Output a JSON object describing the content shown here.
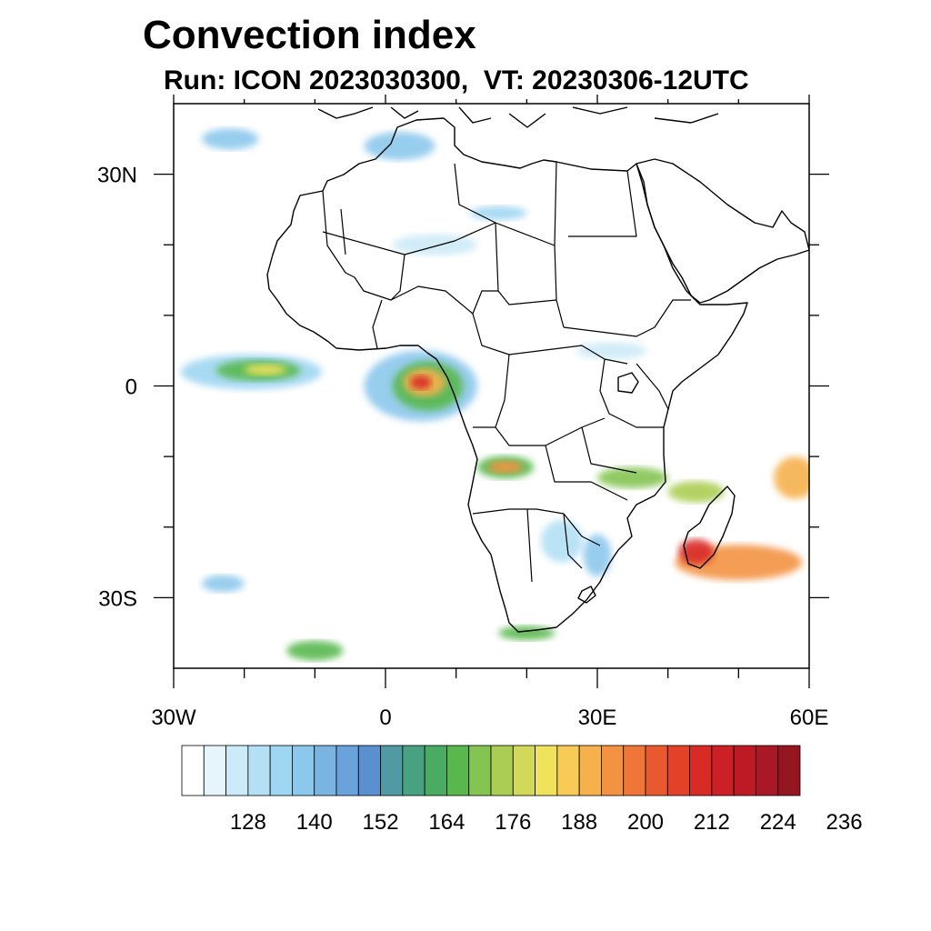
{
  "title": "Convection index",
  "subtitle": "Run: ICON 2023030300,  VT: 20230306-12UTC",
  "map": {
    "lon_range": [
      -30,
      60
    ],
    "lat_range": [
      -40,
      40
    ],
    "lon_ticks": [
      {
        "value": -30,
        "label": "30W"
      },
      {
        "value": 0,
        "label": "0"
      },
      {
        "value": 30,
        "label": "30E"
      },
      {
        "value": 60,
        "label": "60E"
      }
    ],
    "lat_ticks": [
      {
        "value": 30,
        "label": "30N"
      },
      {
        "value": 0,
        "label": "0"
      },
      {
        "value": -30,
        "label": "30S"
      }
    ],
    "minor_lon_ticks": [
      -20,
      -10,
      10,
      20,
      40,
      50
    ],
    "minor_lat_ticks": [
      20,
      10,
      -10,
      -20
    ]
  },
  "colorbar": {
    "colors": [
      "#ffffff",
      "#e6f5fc",
      "#cceaf7",
      "#b3e0f4",
      "#9fd6f2",
      "#8cc8ec",
      "#79b4e3",
      "#6aa2db",
      "#5a90cf",
      "#4f9aa3",
      "#48a282",
      "#4aab63",
      "#58b84e",
      "#84c452",
      "#abcd53",
      "#d2d857",
      "#f0e25a",
      "#f8cb56",
      "#f6b14d",
      "#f39342",
      "#ef7638",
      "#e9592f",
      "#e34228",
      "#d82b25",
      "#cc1f26",
      "#bd1a26",
      "#aa1725",
      "#951621"
    ],
    "labels": [
      "128",
      "140",
      "152",
      "164",
      "176",
      "188",
      "200",
      "212",
      "224",
      "236"
    ]
  },
  "convection_areas": [
    {
      "lon": -19,
      "lat": 2,
      "rx": 10,
      "ry": 2.5,
      "color": "#9fd6f2"
    },
    {
      "lon": -18,
      "lat": 2.2,
      "rx": 6,
      "ry": 1.5,
      "color": "#58b84e"
    },
    {
      "lon": -17,
      "lat": 2.3,
      "rx": 3,
      "ry": 0.8,
      "color": "#f0e25a"
    },
    {
      "lon": 5,
      "lat": 0,
      "rx": 8,
      "ry": 5,
      "color": "#8cc8ec"
    },
    {
      "lon": 6,
      "lat": 0,
      "rx": 5,
      "ry": 3.5,
      "color": "#58b84e"
    },
    {
      "lon": 5.5,
      "lat": 0.5,
      "rx": 3,
      "ry": 2,
      "color": "#f6b14d"
    },
    {
      "lon": 5,
      "lat": 0.5,
      "rx": 1.5,
      "ry": 1,
      "color": "#d82b25"
    },
    {
      "lon": 17,
      "lat": -11.5,
      "rx": 4,
      "ry": 1.6,
      "color": "#58b84e"
    },
    {
      "lon": 17,
      "lat": -11.5,
      "rx": 2.5,
      "ry": 0.9,
      "color": "#f39342"
    },
    {
      "lon": 35,
      "lat": -13,
      "rx": 5,
      "ry": 1.5,
      "color": "#84c452"
    },
    {
      "lon": 44,
      "lat": -15,
      "rx": 4,
      "ry": 1.5,
      "color": "#abcd53"
    },
    {
      "lon": 58,
      "lat": -13,
      "rx": 3,
      "ry": 3,
      "color": "#f6b14d"
    },
    {
      "lon": 50,
      "lat": -25,
      "rx": 9,
      "ry": 2.5,
      "color": "#f39342"
    },
    {
      "lon": 44,
      "lat": -23.5,
      "rx": 2.5,
      "ry": 1.8,
      "color": "#d82b25"
    },
    {
      "lon": -23,
      "lat": -28,
      "rx": 3,
      "ry": 1.2,
      "color": "#8cc8ec"
    },
    {
      "lon": -10,
      "lat": -37.5,
      "rx": 4,
      "ry": 1.4,
      "color": "#58b84e"
    },
    {
      "lon": 20,
      "lat": -35,
      "rx": 4,
      "ry": 1,
      "color": "#58b84e"
    },
    {
      "lon": -22,
      "lat": 35,
      "rx": 4,
      "ry": 1.5,
      "color": "#8cc8ec"
    },
    {
      "lon": 2,
      "lat": 34,
      "rx": 5,
      "ry": 2,
      "color": "#8cc8ec"
    },
    {
      "lon": 16,
      "lat": 24.5,
      "rx": 4,
      "ry": 1,
      "color": "#9fd6f2"
    },
    {
      "lon": 7,
      "lat": 20,
      "rx": 6,
      "ry": 1.5,
      "color": "#cceaf7"
    },
    {
      "lon": 32,
      "lat": 5,
      "rx": 5,
      "ry": 1.2,
      "color": "#cceaf7"
    },
    {
      "lon": 25,
      "lat": -22,
      "rx": 3,
      "ry": 3,
      "color": "#b3e0f4"
    },
    {
      "lon": 30,
      "lat": -24,
      "rx": 2,
      "ry": 3,
      "color": "#8cc8ec"
    }
  ]
}
